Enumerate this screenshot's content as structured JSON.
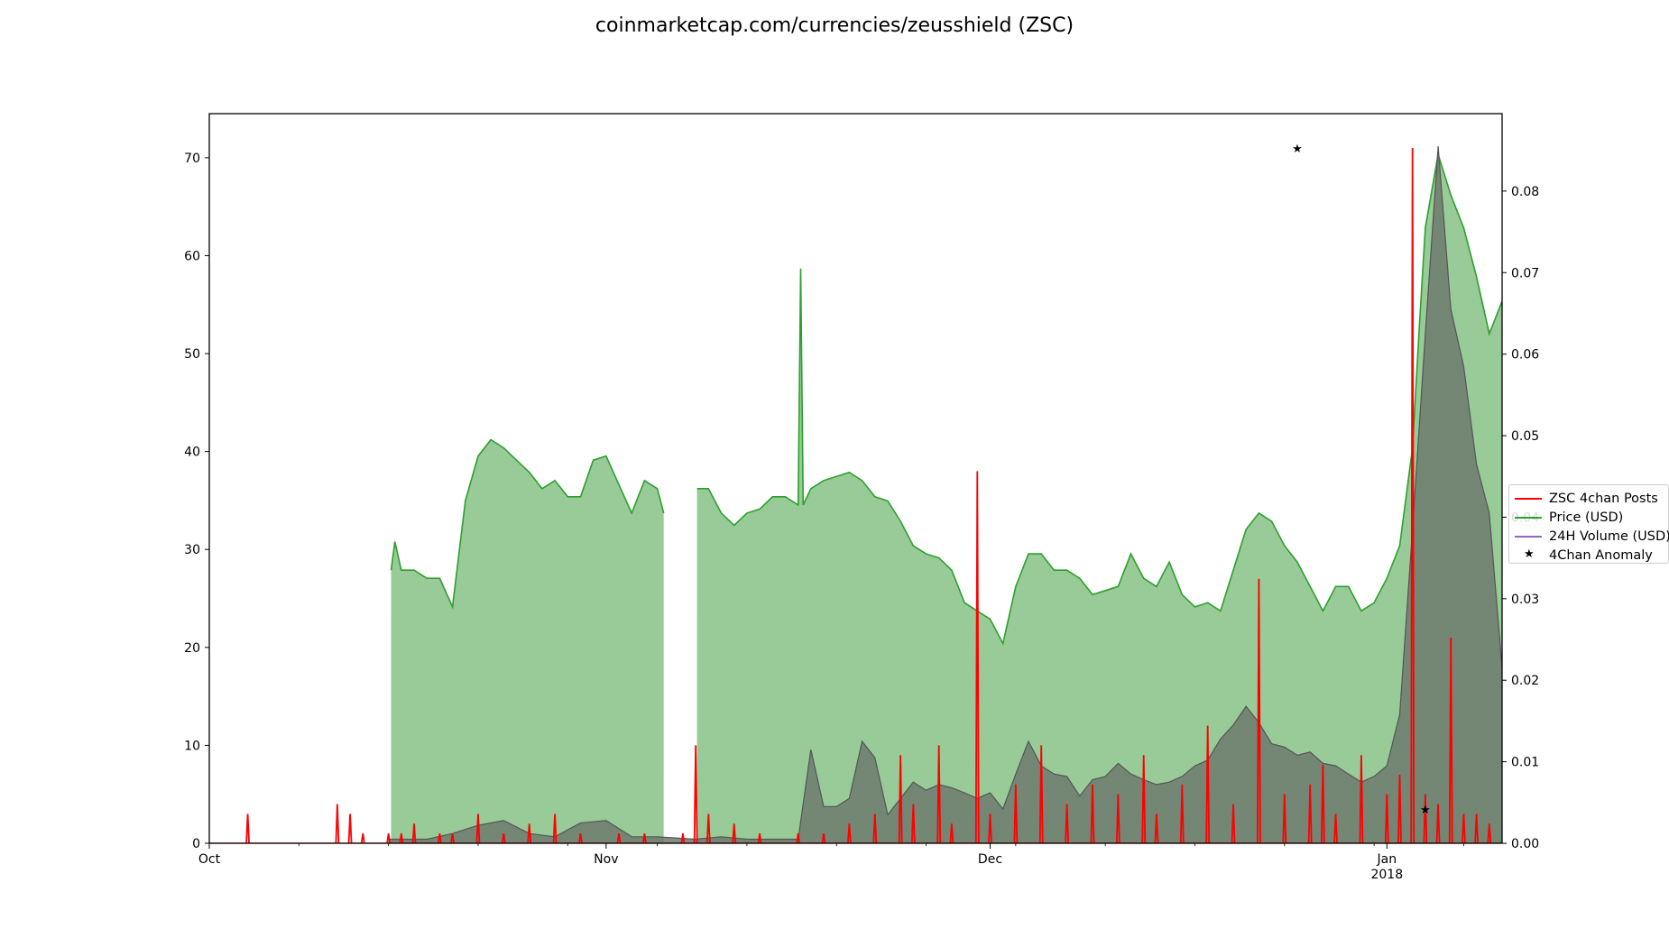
{
  "chart_data": {
    "type": "line",
    "title": "coinmarketcap.com/currencies/zeusshield (ZSC)",
    "xlabel": "",
    "ylabel_left": "",
    "ylabel_right": "",
    "x_range": [
      "2017-10-01",
      "2018-01-10"
    ],
    "x_ticks": [
      {
        "date": "2017-10-01",
        "label": "Oct",
        "sublabel": ""
      },
      {
        "date": "2017-11-01",
        "label": "Nov",
        "sublabel": ""
      },
      {
        "date": "2017-12-01",
        "label": "Dec",
        "sublabel": ""
      },
      {
        "date": "2018-01-01",
        "label": "Jan",
        "sublabel": "2018"
      }
    ],
    "ylim_left": [
      0,
      74.5
    ],
    "y_ticks_left": [
      0,
      10,
      20,
      30,
      40,
      50,
      60,
      70
    ],
    "ylim_right": [
      0,
      0.0895
    ],
    "y_ticks_right": [
      "0.00",
      "0.01",
      "0.02",
      "0.03",
      "0.04",
      "0.05",
      "0.06",
      "0.07",
      "0.08"
    ],
    "legend_position": "center-right",
    "series": [
      {
        "name": "ZSC 4chan Posts",
        "axis": "left",
        "color": "#ff0000",
        "points": [
          [
            "2017-10-04",
            3
          ],
          [
            "2017-10-11",
            4
          ],
          [
            "2017-10-12",
            3
          ],
          [
            "2017-10-13",
            1
          ],
          [
            "2017-10-15",
            1
          ],
          [
            "2017-10-16",
            1
          ],
          [
            "2017-10-17",
            2
          ],
          [
            "2017-10-19",
            1
          ],
          [
            "2017-10-20",
            1
          ],
          [
            "2017-10-22",
            3
          ],
          [
            "2017-10-24",
            1
          ],
          [
            "2017-10-26",
            2
          ],
          [
            "2017-10-28",
            3
          ],
          [
            "2017-10-30",
            1
          ],
          [
            "2017-11-02",
            1
          ],
          [
            "2017-11-04",
            1
          ],
          [
            "2017-11-07",
            1
          ],
          [
            "2017-11-08",
            10
          ],
          [
            "2017-11-09",
            3
          ],
          [
            "2017-11-11",
            2
          ],
          [
            "2017-11-13",
            1
          ],
          [
            "2017-11-16",
            1
          ],
          [
            "2017-11-18",
            1
          ],
          [
            "2017-11-20",
            2
          ],
          [
            "2017-11-22",
            3
          ],
          [
            "2017-11-24",
            9
          ],
          [
            "2017-11-25",
            4
          ],
          [
            "2017-11-27",
            10
          ],
          [
            "2017-11-28",
            2
          ],
          [
            "2017-11-30",
            38
          ],
          [
            "2017-12-01",
            3
          ],
          [
            "2017-12-03",
            6
          ],
          [
            "2017-12-05",
            10
          ],
          [
            "2017-12-07",
            4
          ],
          [
            "2017-12-09",
            6
          ],
          [
            "2017-12-11",
            5
          ],
          [
            "2017-12-13",
            9
          ],
          [
            "2017-12-14",
            3
          ],
          [
            "2017-12-16",
            6
          ],
          [
            "2017-12-18",
            12
          ],
          [
            "2017-12-20",
            4
          ],
          [
            "2017-12-22",
            27
          ],
          [
            "2017-12-24",
            5
          ],
          [
            "2017-12-26",
            6
          ],
          [
            "2017-12-27",
            8
          ],
          [
            "2017-12-28",
            3
          ],
          [
            "2017-12-30",
            9
          ],
          [
            "2018-01-01",
            5
          ],
          [
            "2018-01-02",
            7
          ],
          [
            "2018-01-03",
            71
          ],
          [
            "2018-01-04",
            5
          ],
          [
            "2018-01-05",
            4
          ],
          [
            "2018-01-06",
            21
          ],
          [
            "2018-01-07",
            3
          ],
          [
            "2018-01-08",
            3
          ],
          [
            "2018-01-09",
            2
          ]
        ]
      },
      {
        "name": "Price (USD)",
        "axis": "right",
        "color": "#2ca02c",
        "fill": "#98cb98",
        "points": [
          [
            "2017-10-15",
            null
          ],
          [
            "2017-10-15.2",
            0.0335
          ],
          [
            "2017-10-15.5",
            0.037
          ],
          [
            "2017-10-16",
            0.0335
          ],
          [
            "2017-10-17",
            0.0335
          ],
          [
            "2017-10-18",
            0.0325
          ],
          [
            "2017-10-19",
            0.0325
          ],
          [
            "2017-10-20",
            0.029
          ],
          [
            "2017-10-21",
            0.042
          ],
          [
            "2017-10-22",
            0.0475
          ],
          [
            "2017-10-23",
            0.0495
          ],
          [
            "2017-10-24",
            0.0485
          ],
          [
            "2017-10-25",
            0.047
          ],
          [
            "2017-10-26",
            0.0455
          ],
          [
            "2017-10-27",
            0.0435
          ],
          [
            "2017-10-28",
            0.0445
          ],
          [
            "2017-10-29",
            0.0425
          ],
          [
            "2017-10-30",
            0.0425
          ],
          [
            "2017-10-31",
            0.047
          ],
          [
            "2017-11-01",
            0.0475
          ],
          [
            "2017-11-02",
            0.044
          ],
          [
            "2017-11-03",
            0.0405
          ],
          [
            "2017-11-04",
            0.0445
          ],
          [
            "2017-11-05",
            0.0435
          ],
          [
            "2017-11-05.5",
            0.0405
          ],
          [
            "2017-11-05.7",
            null
          ],
          [
            "2017-11-08",
            null
          ],
          [
            "2017-11-08.1",
            0.0435
          ],
          [
            "2017-11-09",
            0.0435
          ],
          [
            "2017-11-10",
            0.0405
          ],
          [
            "2017-11-11",
            0.039
          ],
          [
            "2017-11-12",
            0.0405
          ],
          [
            "2017-11-13",
            0.041
          ],
          [
            "2017-11-14",
            0.0425
          ],
          [
            "2017-11-15",
            0.0425
          ],
          [
            "2017-11-16",
            0.0415
          ],
          [
            "2017-11-16.2",
            0.0705
          ],
          [
            "2017-11-16.4",
            0.0415
          ],
          [
            "2017-11-17",
            0.0435
          ],
          [
            "2017-11-18",
            0.0445
          ],
          [
            "2017-11-19",
            0.045
          ],
          [
            "2017-11-20",
            0.0455
          ],
          [
            "2017-11-21",
            0.0445
          ],
          [
            "2017-11-22",
            0.0425
          ],
          [
            "2017-11-23",
            0.042
          ],
          [
            "2017-11-24",
            0.0395
          ],
          [
            "2017-11-25",
            0.0365
          ],
          [
            "2017-11-26",
            0.0355
          ],
          [
            "2017-11-27",
            0.035
          ],
          [
            "2017-11-28",
            0.0335
          ],
          [
            "2017-11-29",
            0.0295
          ],
          [
            "2017-11-30",
            0.0285
          ],
          [
            "2017-12-01",
            0.0275
          ],
          [
            "2017-12-02",
            0.0245
          ],
          [
            "2017-12-03",
            0.0315
          ],
          [
            "2017-12-04",
            0.0355
          ],
          [
            "2017-12-05",
            0.0355
          ],
          [
            "2017-12-06",
            0.0335
          ],
          [
            "2017-12-07",
            0.0335
          ],
          [
            "2017-12-08",
            0.0325
          ],
          [
            "2017-12-09",
            0.0305
          ],
          [
            "2017-12-10",
            0.031
          ],
          [
            "2017-12-11",
            0.0315
          ],
          [
            "2017-12-12",
            0.0355
          ],
          [
            "2017-12-13",
            0.0325
          ],
          [
            "2017-12-14",
            0.0315
          ],
          [
            "2017-12-15",
            0.0345
          ],
          [
            "2017-12-16",
            0.0305
          ],
          [
            "2017-12-17",
            0.029
          ],
          [
            "2017-12-18",
            0.0295
          ],
          [
            "2017-12-19",
            0.0285
          ],
          [
            "2017-12-20",
            0.0335
          ],
          [
            "2017-12-21",
            0.0385
          ],
          [
            "2017-12-22",
            0.0405
          ],
          [
            "2017-12-23",
            0.0395
          ],
          [
            "2017-12-24",
            0.0365
          ],
          [
            "2017-12-25",
            0.0345
          ],
          [
            "2017-12-26",
            0.0315
          ],
          [
            "2017-12-27",
            0.0285
          ],
          [
            "2017-12-28",
            0.0315
          ],
          [
            "2017-12-29",
            0.0315
          ],
          [
            "2017-12-30",
            0.0285
          ],
          [
            "2017-12-31",
            0.0295
          ],
          [
            "2018-01-01",
            0.0325
          ],
          [
            "2018-01-02",
            0.0365
          ],
          [
            "2018-01-03",
            0.0485
          ],
          [
            "2018-01-03.5",
            0.0625
          ],
          [
            "2018-01-04",
            0.0755
          ],
          [
            "2018-01-05",
            0.0845
          ],
          [
            "2018-01-06",
            0.0795
          ],
          [
            "2018-01-07",
            0.0755
          ],
          [
            "2018-01-08",
            0.0695
          ],
          [
            "2018-01-09",
            0.0625
          ],
          [
            "2018-01-10",
            0.0665
          ]
        ]
      },
      {
        "name": "24H Volume (USD)",
        "axis": "right",
        "color": "#9467bd",
        "fill": "#6d7a6d",
        "points": [
          [
            "2017-10-15",
            0.0005
          ],
          [
            "2017-10-18",
            0.0005
          ],
          [
            "2017-10-20",
            0.0012
          ],
          [
            "2017-10-22",
            0.0022
          ],
          [
            "2017-10-24",
            0.0028
          ],
          [
            "2017-10-26",
            0.0012
          ],
          [
            "2017-10-28",
            0.0008
          ],
          [
            "2017-10-30",
            0.0025
          ],
          [
            "2017-11-01",
            0.0028
          ],
          [
            "2017-11-03",
            0.0008
          ],
          [
            "2017-11-05",
            0.0008
          ],
          [
            "2017-11-08",
            0.0005
          ],
          [
            "2017-11-10",
            0.0008
          ],
          [
            "2017-11-12",
            0.0005
          ],
          [
            "2017-11-14",
            0.0005
          ],
          [
            "2017-11-16",
            0.0005
          ],
          [
            "2017-11-17",
            0.0115
          ],
          [
            "2017-11-18",
            0.0045
          ],
          [
            "2017-11-19",
            0.0045
          ],
          [
            "2017-11-20",
            0.0055
          ],
          [
            "2017-11-21",
            0.0125
          ],
          [
            "2017-11-22",
            0.0105
          ],
          [
            "2017-11-23",
            0.0035
          ],
          [
            "2017-11-24",
            0.0055
          ],
          [
            "2017-11-25",
            0.0075
          ],
          [
            "2017-11-26",
            0.0065
          ],
          [
            "2017-11-27",
            0.0072
          ],
          [
            "2017-11-28",
            0.0068
          ],
          [
            "2017-11-29",
            0.0062
          ],
          [
            "2017-11-30",
            0.0055
          ],
          [
            "2017-12-01",
            0.0062
          ],
          [
            "2017-12-02",
            0.0042
          ],
          [
            "2017-12-03",
            0.0085
          ],
          [
            "2017-12-04",
            0.0125
          ],
          [
            "2017-12-05",
            0.0095
          ],
          [
            "2017-12-06",
            0.0085
          ],
          [
            "2017-12-07",
            0.0082
          ],
          [
            "2017-12-08",
            0.0058
          ],
          [
            "2017-12-09",
            0.0078
          ],
          [
            "2017-12-10",
            0.0082
          ],
          [
            "2017-12-11",
            0.0098
          ],
          [
            "2017-12-12",
            0.0085
          ],
          [
            "2017-12-13",
            0.0078
          ],
          [
            "2017-12-14",
            0.0072
          ],
          [
            "2017-12-15",
            0.0075
          ],
          [
            "2017-12-16",
            0.0082
          ],
          [
            "2017-12-17",
            0.0095
          ],
          [
            "2017-12-18",
            0.0102
          ],
          [
            "2017-12-19",
            0.0128
          ],
          [
            "2017-12-20",
            0.0145
          ],
          [
            "2017-12-21",
            0.0168
          ],
          [
            "2017-12-22",
            0.0148
          ],
          [
            "2017-12-23",
            0.0122
          ],
          [
            "2017-12-24",
            0.0118
          ],
          [
            "2017-12-25",
            0.0108
          ],
          [
            "2017-12-26",
            0.0112
          ],
          [
            "2017-12-27",
            0.0098
          ],
          [
            "2017-12-28",
            0.0095
          ],
          [
            "2017-12-29",
            0.0085
          ],
          [
            "2017-12-30",
            0.0075
          ],
          [
            "2017-12-31",
            0.0082
          ],
          [
            "2018-01-01",
            0.0095
          ],
          [
            "2018-01-02",
            0.0158
          ],
          [
            "2018-01-03",
            0.0385
          ],
          [
            "2018-01-04",
            0.0625
          ],
          [
            "2018-01-05",
            0.0855
          ],
          [
            "2018-01-06",
            0.0655
          ],
          [
            "2018-01-07",
            0.0585
          ],
          [
            "2018-01-08",
            0.0465
          ],
          [
            "2018-01-09",
            0.0405
          ],
          [
            "2018-01-10",
            0.0215
          ]
        ]
      },
      {
        "name": "4Chan Anomaly",
        "axis": "left",
        "color": "#000000",
        "marker": "star",
        "points": [
          [
            "2017-12-25",
            71
          ],
          [
            "2018-01-04",
            3.5
          ]
        ]
      }
    ]
  }
}
